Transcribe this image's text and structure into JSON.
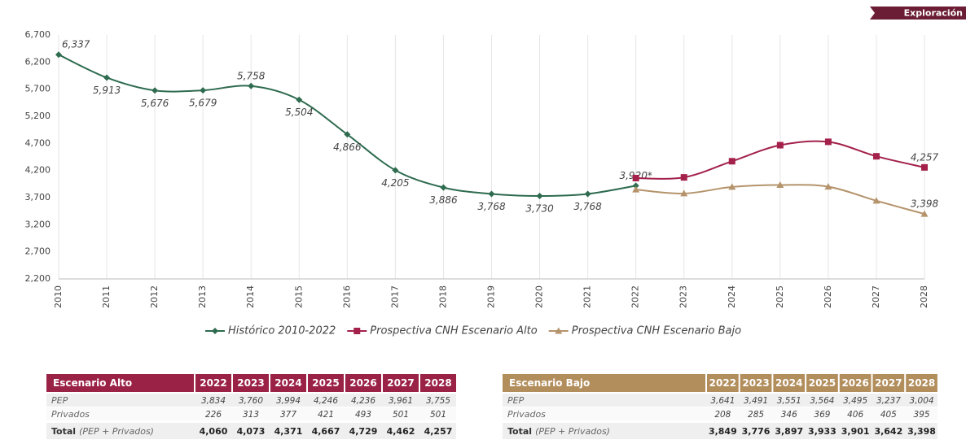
{
  "badge": "Exploración",
  "chart_data": {
    "type": "line",
    "categories": [
      "2010",
      "2011",
      "2012",
      "2013",
      "2014",
      "2015",
      "2016",
      "2017",
      "2018",
      "2019",
      "2020",
      "2021",
      "2022",
      "2023",
      "2024",
      "2025",
      "2026",
      "2027",
      "2028"
    ],
    "series": [
      {
        "name": "Histórico 2010-2022",
        "color": "#2e6b4f",
        "marker": "diamond",
        "values": [
          6337,
          5913,
          5676,
          5679,
          5758,
          5504,
          4866,
          4205,
          3886,
          3768,
          3730,
          3768,
          3920,
          null,
          null,
          null,
          null,
          null,
          null
        ],
        "value_labels": [
          "6,337",
          "5,913",
          "5,676",
          "5,679",
          "5,758",
          "5,504",
          "4,866",
          "4,205",
          "3,886",
          "3,768",
          "3,730",
          "3,768",
          "3,920*",
          null,
          null,
          null,
          null,
          null,
          null
        ]
      },
      {
        "name": "Prospectiva CNH Escenario Alto",
        "color": "#a3214a",
        "marker": "square",
        "values": [
          null,
          null,
          null,
          null,
          null,
          null,
          null,
          null,
          null,
          null,
          null,
          null,
          4060,
          4073,
          4371,
          4667,
          4729,
          4462,
          4257
        ],
        "value_labels": [
          null,
          null,
          null,
          null,
          null,
          null,
          null,
          null,
          null,
          null,
          null,
          null,
          null,
          null,
          null,
          null,
          null,
          null,
          "4,257"
        ]
      },
      {
        "name": "Prospectiva CNH Escenario Bajo",
        "color": "#b5936b",
        "marker": "triangle",
        "values": [
          null,
          null,
          null,
          null,
          null,
          null,
          null,
          null,
          null,
          null,
          null,
          null,
          3849,
          3776,
          3897,
          3933,
          3901,
          3642,
          3398
        ],
        "value_labels": [
          null,
          null,
          null,
          null,
          null,
          null,
          null,
          null,
          null,
          null,
          null,
          null,
          null,
          null,
          null,
          null,
          null,
          null,
          "3,398"
        ]
      }
    ],
    "ylim": [
      2200,
      6700
    ],
    "yticks": [
      {
        "value": 2200,
        "label": "2,200"
      },
      {
        "value": 2700,
        "label": "2,700"
      },
      {
        "value": 3200,
        "label": "3,200"
      },
      {
        "value": 3700,
        "label": "3,700"
      },
      {
        "value": 4200,
        "label": "4,200"
      },
      {
        "value": 4700,
        "label": "4,700"
      },
      {
        "value": 5200,
        "label": "5,200"
      },
      {
        "value": 5700,
        "label": "5,700"
      },
      {
        "value": 6200,
        "label": "6,200"
      },
      {
        "value": 6700,
        "label": "6,700"
      }
    ],
    "grid": "x",
    "legend": "bottom"
  },
  "tables": [
    {
      "color": "#9b2247",
      "header": [
        "Escenario Alto",
        "2022",
        "2023",
        "2024",
        "2025",
        "2026",
        "2027",
        "2028"
      ],
      "rows": [
        {
          "label": "PEP",
          "values": [
            "3,834",
            "3,760",
            "3,994",
            "4,246",
            "4,236",
            "3,961",
            "3,755"
          ]
        },
        {
          "label": "Privados",
          "values": [
            "226",
            "313",
            "377",
            "421",
            "493",
            "501",
            "501"
          ]
        },
        {
          "label": "Total",
          "note": "(PEP + Privados)",
          "values": [
            "4,060",
            "4,073",
            "4,371",
            "4,667",
            "4,729",
            "4,462",
            "4,257"
          ]
        }
      ]
    },
    {
      "color": "#b38e5d",
      "header": [
        "Escenario Bajo",
        "2022",
        "2023",
        "2024",
        "2025",
        "2026",
        "2027",
        "2028"
      ],
      "rows": [
        {
          "label": "PEP",
          "values": [
            "3,641",
            "3,491",
            "3,551",
            "3,564",
            "3,495",
            "3,237",
            "3,004"
          ]
        },
        {
          "label": "Privados",
          "values": [
            "208",
            "285",
            "346",
            "369",
            "406",
            "405",
            "395"
          ]
        },
        {
          "label": "Total",
          "note": "(PEP + Privados)",
          "values": [
            "3,849",
            "3,776",
            "3,897",
            "3,933",
            "3,901",
            "3,642",
            "3,398"
          ]
        }
      ]
    }
  ]
}
